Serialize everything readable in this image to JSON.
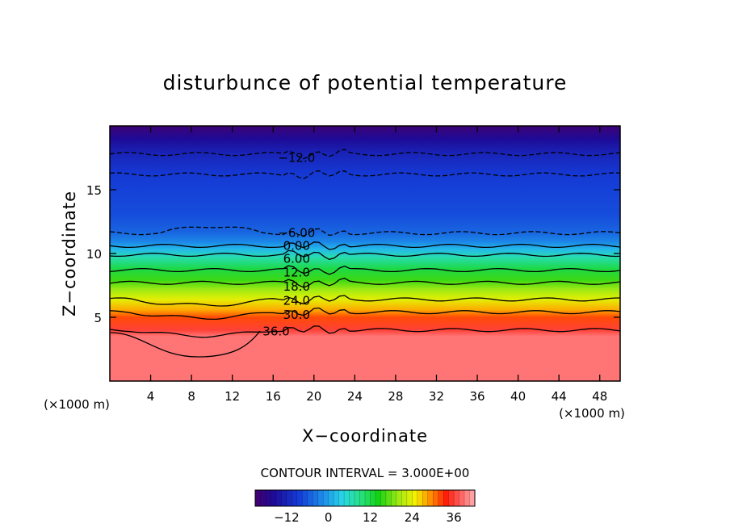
{
  "chart_data": {
    "type": "heatmap",
    "title": "disturbunce of potential temperature",
    "xlabel": "X−coordinate",
    "ylabel": "Z−coordinate",
    "x_unit": "(×1000 m)",
    "y_unit": "(×1000 m)",
    "xlim": [
      0,
      50
    ],
    "ylim": [
      0,
      20
    ],
    "x_ticks": [
      "4",
      "8",
      "12",
      "16",
      "20",
      "24",
      "28",
      "32",
      "36",
      "40",
      "44",
      "48"
    ],
    "y_ticks": [
      "5",
      "10",
      "15"
    ],
    "contour_interval_label": "CONTOUR INTERVAL = 3.000E+00",
    "colorbar": {
      "min": -21,
      "max": 42,
      "ticks": [
        "−12",
        "0",
        "12",
        "24",
        "36"
      ]
    },
    "contour_labels": [
      "−12.0",
      "−6.00",
      "0.00",
      "6.00",
      "12.0",
      "18.0",
      "24.0",
      "30.0",
      "36.0"
    ],
    "contour_levels": [
      {
        "value": -12,
        "z": 17.8,
        "dashed": true
      },
      {
        "value": -9,
        "z": 16.2,
        "dashed": true
      },
      {
        "value": -6,
        "z": 11.6,
        "dashed": true
      },
      {
        "value": 0,
        "z": 10.6,
        "dashed": false
      },
      {
        "value": 6,
        "z": 9.9,
        "dashed": false
      },
      {
        "value": 12,
        "z": 8.7,
        "dashed": false
      },
      {
        "value": 18,
        "z": 7.7,
        "dashed": false
      },
      {
        "value": 24,
        "z": 6.4,
        "dashed": false
      },
      {
        "value": 30,
        "z": 5.4,
        "dashed": false
      },
      {
        "value": 36,
        "z": 4.0,
        "dashed": false
      }
    ],
    "field_profile": [
      {
        "z": 0.0,
        "value": 39
      },
      {
        "z": 3.5,
        "value": 39
      },
      {
        "z": 4.0,
        "value": 36
      },
      {
        "z": 5.0,
        "value": 32
      },
      {
        "z": 5.6,
        "value": 28
      },
      {
        "z": 6.4,
        "value": 24
      },
      {
        "z": 7.2,
        "value": 20
      },
      {
        "z": 7.9,
        "value": 16
      },
      {
        "z": 8.8,
        "value": 12
      },
      {
        "z": 9.7,
        "value": 7
      },
      {
        "z": 10.3,
        "value": 2
      },
      {
        "z": 10.9,
        "value": -2
      },
      {
        "z": 11.7,
        "value": -5
      },
      {
        "z": 13.0,
        "value": -7
      },
      {
        "z": 15.0,
        "value": -8
      },
      {
        "z": 16.3,
        "value": -9
      },
      {
        "z": 17.8,
        "value": -12
      },
      {
        "z": 19.0,
        "value": -16
      },
      {
        "z": 20.0,
        "value": -20
      }
    ]
  }
}
